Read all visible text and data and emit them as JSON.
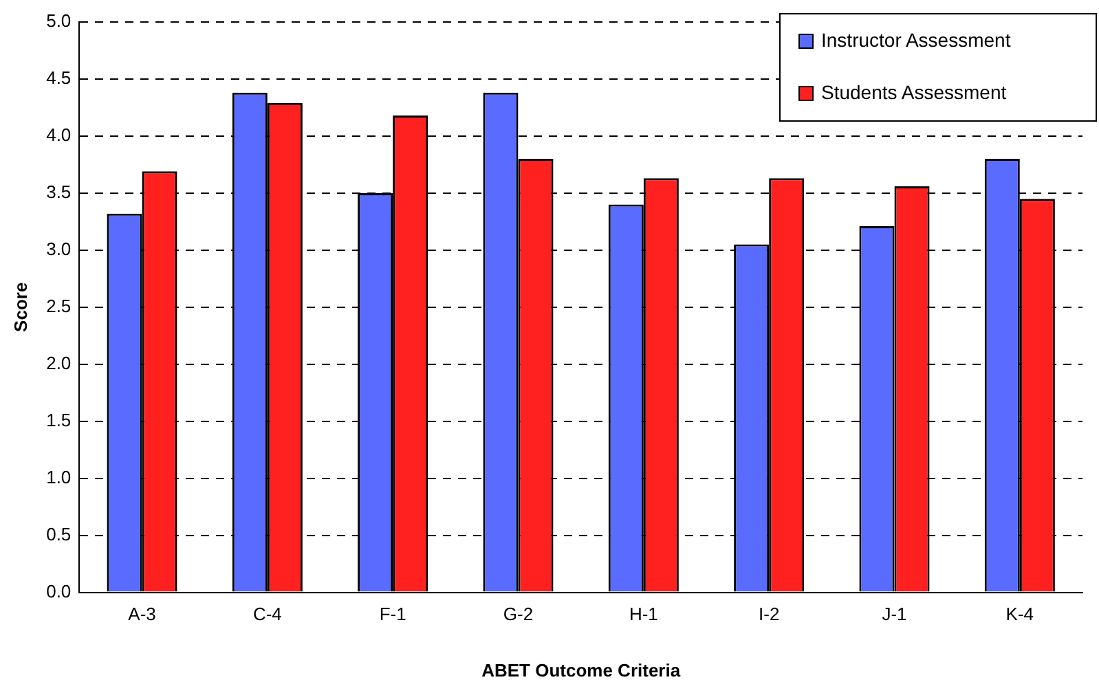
{
  "chart_data": {
    "type": "bar",
    "xlabel": "ABET Outcome Criteria",
    "ylabel": "Score",
    "categories": [
      "A-3",
      "C-4",
      "F-1",
      "G-2",
      "H-1",
      "I-2",
      "J-1",
      "K-4"
    ],
    "series": [
      {
        "name": "Instructor Assessment",
        "color": "#5a6cff",
        "values": [
          3.32,
          4.38,
          3.5,
          4.38,
          3.4,
          3.05,
          3.21,
          3.8
        ]
      },
      {
        "name": "Students Assessment",
        "color": "#ff2020",
        "values": [
          3.69,
          4.29,
          4.18,
          3.8,
          3.63,
          3.63,
          3.56,
          3.45
        ]
      }
    ],
    "ylim": [
      0,
      5
    ],
    "yticks": [
      {
        "value": 0,
        "label": "0.0"
      },
      {
        "value": 0.5,
        "label": "0.5"
      },
      {
        "value": 1,
        "label": "1.0"
      },
      {
        "value": 1.5,
        "label": "1.5"
      },
      {
        "value": 2,
        "label": "2.0"
      },
      {
        "value": 2.5,
        "label": "2.5"
      },
      {
        "value": 3,
        "label": "3.0"
      },
      {
        "value": 3.5,
        "label": "3.5"
      },
      {
        "value": 4,
        "label": "4.0"
      },
      {
        "value": 4.5,
        "label": "4.5"
      },
      {
        "value": 5,
        "label": "5.0"
      }
    ],
    "grid": "y",
    "legend": "top right"
  }
}
